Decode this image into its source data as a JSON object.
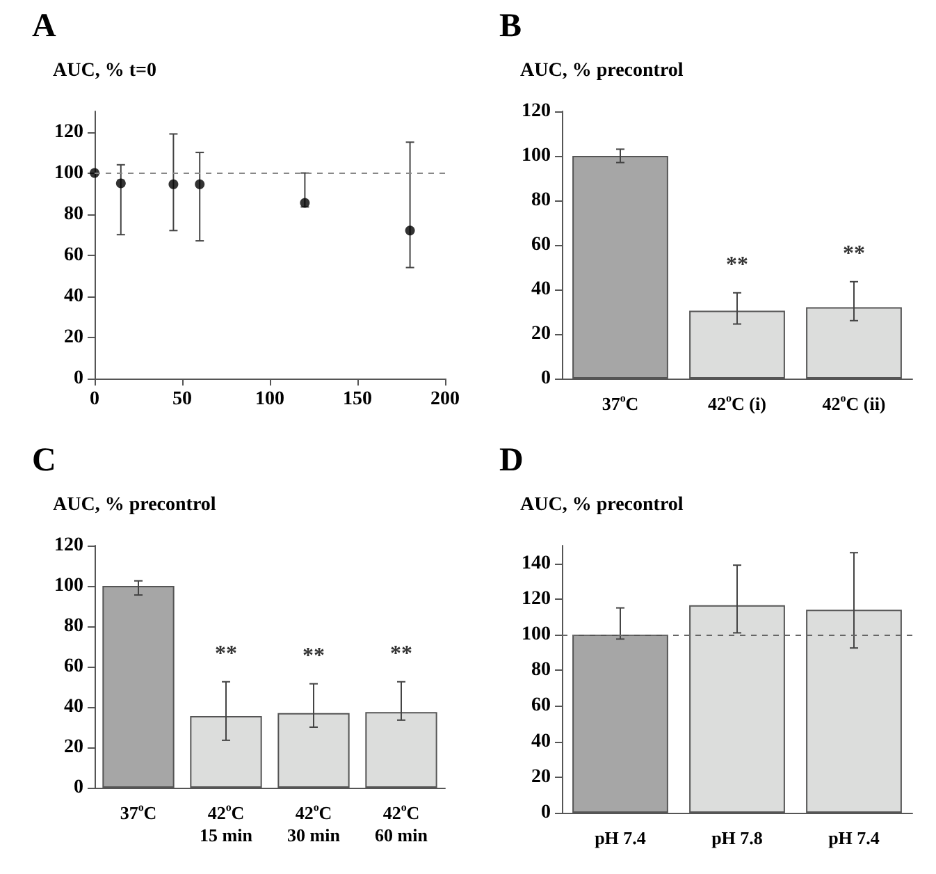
{
  "chart_data": [
    {
      "type": "scatter",
      "title": "A",
      "ylabel": "AUC, % t=0",
      "x": [
        0,
        15,
        45,
        60,
        120,
        180
      ],
      "values": [
        100,
        95,
        94.5,
        94.5,
        85.5,
        72
      ],
      "errors": [
        null,
        [
          70,
          104
        ],
        [
          72,
          119
        ],
        [
          67,
          110
        ],
        [
          83.5,
          100
        ],
        [
          54,
          115
        ]
      ],
      "color": "#000000",
      "marker": "circle",
      "xlim": [
        0,
        200
      ],
      "xticks": [
        0,
        50,
        100,
        150,
        200
      ],
      "ylim": [
        0,
        130
      ],
      "yticks": [
        0,
        20,
        40,
        60,
        80,
        100,
        120
      ],
      "ref_lines": [
        {
          "axis": "y",
          "value": 100,
          "color": "#888888",
          "line_style": "dashed"
        }
      ],
      "grid": false
    },
    {
      "type": "bar",
      "title": "B",
      "ylabel": "AUC, % precontrol",
      "categories": [
        "37$^{o}$C",
        "42$^{o}$C (i)",
        "42$^{o}$C (ii)"
      ],
      "values": [
        100,
        30.5,
        32
      ],
      "errors": [
        [
          97,
          103
        ],
        [
          24.5,
          38.5
        ],
        [
          26,
          43.5
        ]
      ],
      "colors": [
        "#a6a6a6",
        "#dcdddc",
        "#dcdddc"
      ],
      "ylim": [
        0,
        120
      ],
      "yticks": [
        0,
        20,
        40,
        60,
        80,
        100,
        120
      ],
      "annotations": [
        {
          "text": "**",
          "x": "42$^{o}$C (i)",
          "y": 38.5
        },
        {
          "text": "**",
          "x": "42$^{o}$C (ii)",
          "y": 43.5
        }
      ],
      "grid": false
    },
    {
      "type": "bar",
      "title": "C",
      "ylabel": "AUC, % precontrol",
      "categories": [
        "37$^{o}$C",
        "42$^{o}$C\n15 min",
        "42$^{o}$C\n30 min",
        "42$^{o}$C\n60 min"
      ],
      "values": [
        100,
        35.5,
        37,
        37.5
      ],
      "errors": [
        [
          95.5,
          102.5
        ],
        [
          23.5,
          52.5
        ],
        [
          30,
          51.5
        ],
        [
          33.5,
          52.5
        ]
      ],
      "colors": [
        "#a6a6a6",
        "#dcdddc",
        "#dcdddc",
        "#dcdddc"
      ],
      "ylim": [
        0,
        120
      ],
      "yticks": [
        0,
        20,
        40,
        60,
        80,
        100,
        120
      ],
      "annotations": [
        {
          "text": "**",
          "x": "42$^{o}$C\n15 min",
          "y": 52.5
        },
        {
          "text": "**",
          "x": "42$^{o}$C\n30 min",
          "y": 51.5
        },
        {
          "text": "**",
          "x": "42$^{o}$C\n60 min",
          "y": 52.5
        }
      ],
      "grid": false
    },
    {
      "type": "bar",
      "title": "D",
      "ylabel": "AUC, % precontrol",
      "categories": [
        "pH 7.4",
        "pH 7.8",
        "pH 7.4"
      ],
      "values": [
        100,
        116.5,
        114
      ],
      "errors": [
        [
          97.5,
          115
        ],
        [
          101,
          139
        ],
        [
          92.5,
          146
        ]
      ],
      "colors": [
        "#a6a6a6",
        "#dcdddc",
        "#dcdddc"
      ],
      "ylim": [
        0,
        150
      ],
      "yticks": [
        0,
        20,
        40,
        60,
        80,
        100,
        120,
        140
      ],
      "ref_lines": [
        {
          "axis": "y",
          "value": 100,
          "color": "#666666",
          "line_style": "dashed"
        }
      ],
      "grid": false
    }
  ]
}
